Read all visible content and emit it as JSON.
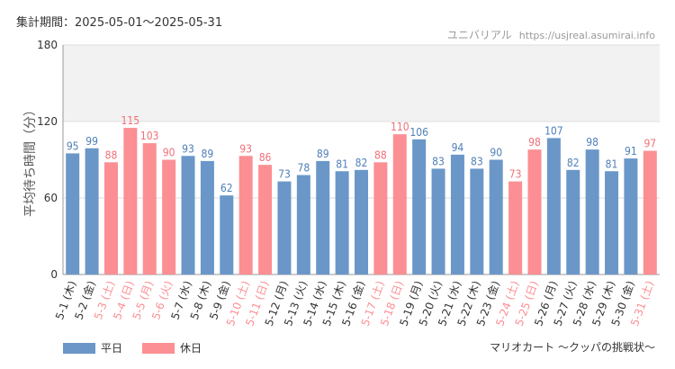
{
  "header": {
    "period_label": "集計期間：2025-05-01～2025-05-31",
    "site_name": "ユニバリアル",
    "site_url": "https://usjreal.asumirai.info"
  },
  "footer": {
    "attraction_name": "マリオカート ～クッパの挑戦状～"
  },
  "colors": {
    "weekday": "#6a97c8",
    "holiday": "#fb8f93",
    "weekday_label": "#4f7fb8",
    "holiday_label": "#f07078",
    "band": "#f2f2f2"
  },
  "chart_data": {
    "type": "bar",
    "ylabel": "平均待ち時間（分）",
    "ylim": [
      0,
      180
    ],
    "yticks": [
      0,
      60,
      120,
      180
    ],
    "shaded_band": [
      120,
      180
    ],
    "legend": [
      {
        "name": "平日",
        "color": "#6a97c8"
      },
      {
        "name": "休日",
        "color": "#fb8f93"
      }
    ],
    "legend_position": "bottom-left",
    "categories": [
      "5-1 (木)",
      "5-2 (金)",
      "5-3 (土)",
      "5-4 (日)",
      "5-5 (月)",
      "5-6 (火)",
      "5-7 (水)",
      "5-8 (木)",
      "5-9 (金)",
      "5-10 (土)",
      "5-11 (日)",
      "5-12 (月)",
      "5-13 (火)",
      "5-14 (水)",
      "5-15 (木)",
      "5-16 (金)",
      "5-17 (土)",
      "5-18 (日)",
      "5-19 (月)",
      "5-20 (火)",
      "5-21 (水)",
      "5-22 (木)",
      "5-23 (金)",
      "5-24 (土)",
      "5-25 (日)",
      "5-26 (月)",
      "5-27 (火)",
      "5-28 (水)",
      "5-29 (木)",
      "5-30 (金)",
      "5-31 (土)"
    ],
    "values": [
      95,
      99,
      88,
      115,
      103,
      90,
      93,
      89,
      62,
      93,
      86,
      73,
      78,
      89,
      81,
      82,
      88,
      110,
      106,
      83,
      94,
      83,
      90,
      73,
      98,
      107,
      82,
      98,
      81,
      91,
      97
    ],
    "holiday": [
      false,
      false,
      true,
      true,
      true,
      true,
      false,
      false,
      false,
      true,
      true,
      false,
      false,
      false,
      false,
      false,
      true,
      true,
      false,
      false,
      false,
      false,
      false,
      true,
      true,
      false,
      false,
      false,
      false,
      false,
      true
    ]
  }
}
